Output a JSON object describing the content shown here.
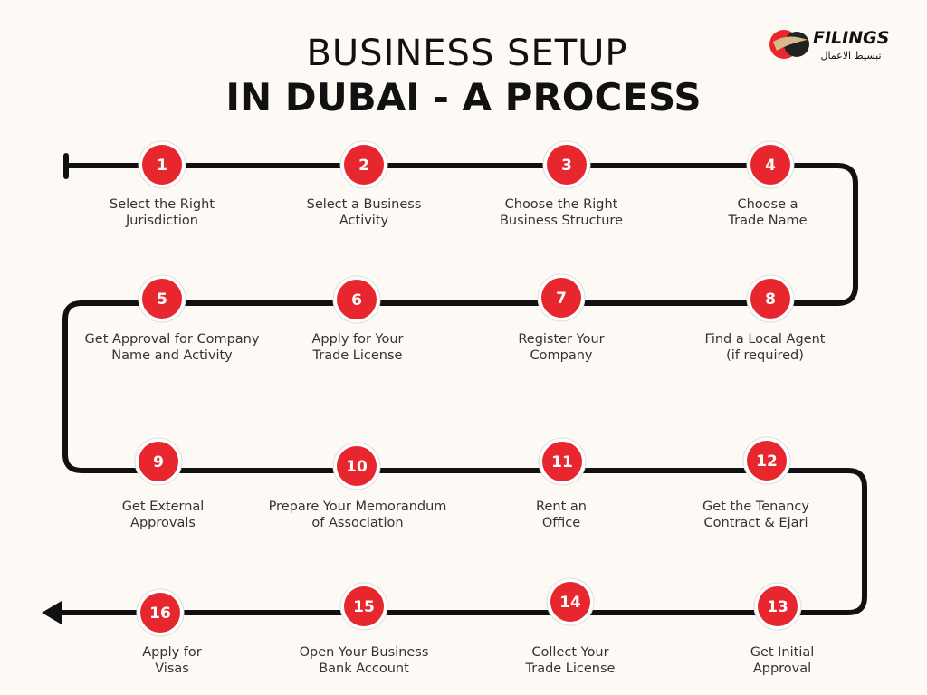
{
  "header": {
    "title_line1": "BUSINESS SETUP",
    "title_line2": "IN DUBAI - A PROCESS"
  },
  "logo": {
    "name": "FILINGS",
    "tagline": "تبسيط الاعمال"
  },
  "steps": [
    {
      "number": "1",
      "label": [
        "Select the Right",
        "Jurisdiction"
      ]
    },
    {
      "number": "2",
      "label": [
        "Select a Business",
        "Activity"
      ]
    },
    {
      "number": "3",
      "label": [
        "Choose the Right",
        "Business Structure"
      ]
    },
    {
      "number": "4",
      "label": [
        "Choose a",
        "Trade Name"
      ]
    },
    {
      "number": "5",
      "label": [
        "Get Approval for Company",
        "Name and Activity"
      ]
    },
    {
      "number": "6",
      "label": [
        "Apply for Your",
        "Trade License"
      ]
    },
    {
      "number": "7",
      "label": [
        "Register Your",
        "Company"
      ]
    },
    {
      "number": "8",
      "label": [
        "Find a Local Agent",
        "(if required)"
      ]
    },
    {
      "number": "9",
      "label": [
        "Get External",
        "Approvals"
      ]
    },
    {
      "number": "10",
      "label": [
        "Prepare Your Memorandum",
        "of Association"
      ]
    },
    {
      "number": "11",
      "label": [
        "Rent an",
        "Office"
      ]
    },
    {
      "number": "12",
      "label": [
        "Get the Tenancy",
        "Contract & Ejari"
      ]
    },
    {
      "number": "13",
      "label": [
        "Get Initial",
        "Approval"
      ]
    },
    {
      "number": "14",
      "label": [
        "Collect Your",
        "Trade License"
      ]
    },
    {
      "number": "15",
      "label": [
        "Open Your Business",
        "Bank Account"
      ]
    },
    {
      "number": "16",
      "label": [
        "Apply for",
        "Visas"
      ]
    }
  ]
}
